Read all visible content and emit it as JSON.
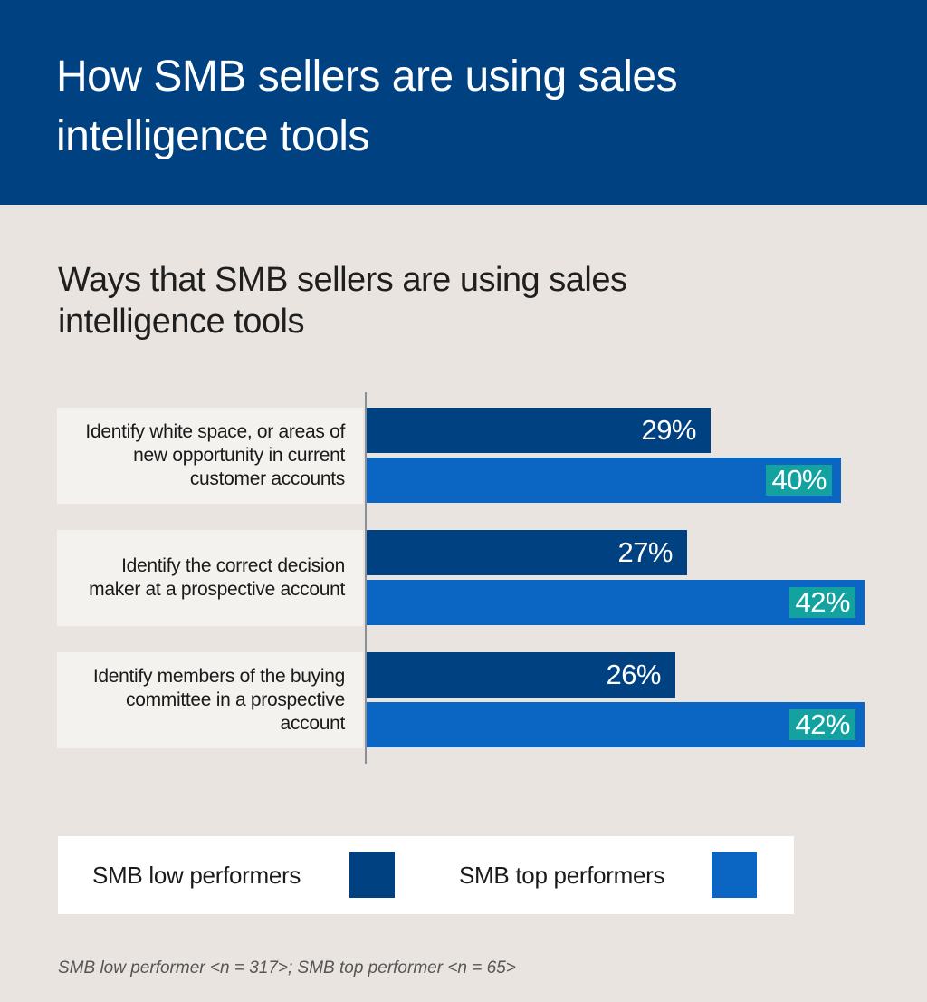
{
  "header": {
    "title": "How SMB sellers are using sales intelligence tools"
  },
  "colors": {
    "header_bg": "#004182",
    "background": "#e9e4df",
    "low_performers": "#004182",
    "top_performers": "#0a66c2",
    "top_value_label_bg": "#13a2a0"
  },
  "chart_data": {
    "type": "bar",
    "orientation": "horizontal",
    "title": "Ways that SMB sellers are using sales intelligence tools",
    "categories": [
      "Identify white space, or areas of new opportunity in current customer accounts",
      "Identify the correct decision maker at a prospective account",
      "Identify members of the buying committee in a prospective account"
    ],
    "series": [
      {
        "name": "SMB low performers",
        "values": [
          29,
          27,
          26
        ],
        "labels": [
          "29%",
          "27%",
          "26%"
        ]
      },
      {
        "name": "SMB top performers",
        "values": [
          40,
          42,
          42
        ],
        "labels": [
          "40%",
          "42%",
          "42%"
        ]
      }
    ],
    "unit": "%",
    "xlim": [
      0,
      45
    ],
    "legend_position": "bottom"
  },
  "footnote": "SMB low performer <n = 317>; SMB top performer <n = 65>"
}
